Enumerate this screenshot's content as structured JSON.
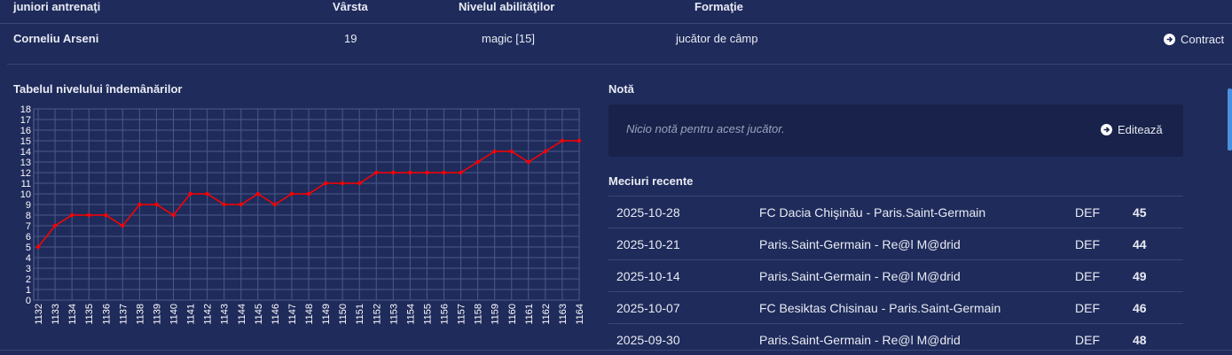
{
  "header": {
    "columns": [
      "juniori antrenaţi",
      "Vârsta",
      "Nivelul abilităţilor",
      "Formaţie"
    ]
  },
  "player": {
    "name": "Corneliu Arseni",
    "age": "19",
    "skill": "magic [15]",
    "position": "jucător de câmp",
    "action": "Contract"
  },
  "chart_data": {
    "type": "line",
    "title": "Tabelul nivelului îndemânărilor",
    "categories": [
      "1132",
      "1133",
      "1134",
      "1135",
      "1136",
      "1137",
      "1138",
      "1139",
      "1140",
      "1141",
      "1142",
      "1143",
      "1144",
      "1145",
      "1146",
      "1147",
      "1148",
      "1149",
      "1150",
      "1151",
      "1152",
      "1153",
      "1154",
      "1155",
      "1156",
      "1157",
      "1158",
      "1159",
      "1160",
      "1161",
      "1162",
      "1163",
      "1164"
    ],
    "values": [
      5,
      7,
      8,
      8,
      8,
      7,
      9,
      9,
      8,
      10,
      10,
      9,
      9,
      10,
      9,
      10,
      10,
      11,
      11,
      11,
      12,
      12,
      12,
      12,
      12,
      12,
      13,
      14,
      14,
      13,
      14,
      15,
      15
    ],
    "color": "#ff0000",
    "ylim": [
      0,
      18
    ],
    "yticks": [
      0,
      1,
      2,
      3,
      4,
      5,
      6,
      7,
      8,
      9,
      10,
      11,
      12,
      13,
      14,
      15,
      16,
      17,
      18
    ],
    "grid": true
  },
  "note": {
    "title": "Notă",
    "text": "Nicio notă pentru acest jucător.",
    "action": "Editează"
  },
  "matches": {
    "title": "Meciuri recente",
    "rows": [
      [
        "2025-10-28",
        "FC Dacia Chişinău - Paris.Saint-Germain",
        "DEF",
        "45"
      ],
      [
        "2025-10-21",
        "Paris.Saint-Germain - Re@l M@drid",
        "DEF",
        "44"
      ],
      [
        "2025-10-14",
        "Paris.Saint-Germain - Re@l M@drid",
        "DEF",
        "49"
      ],
      [
        "2025-10-07",
        "FC Besiktas Chisinau - Paris.Saint-Germain",
        "DEF",
        "46"
      ],
      [
        "2025-09-30",
        "Paris.Saint-Germain - Re@l M@drid",
        "DEF",
        "48"
      ]
    ]
  }
}
